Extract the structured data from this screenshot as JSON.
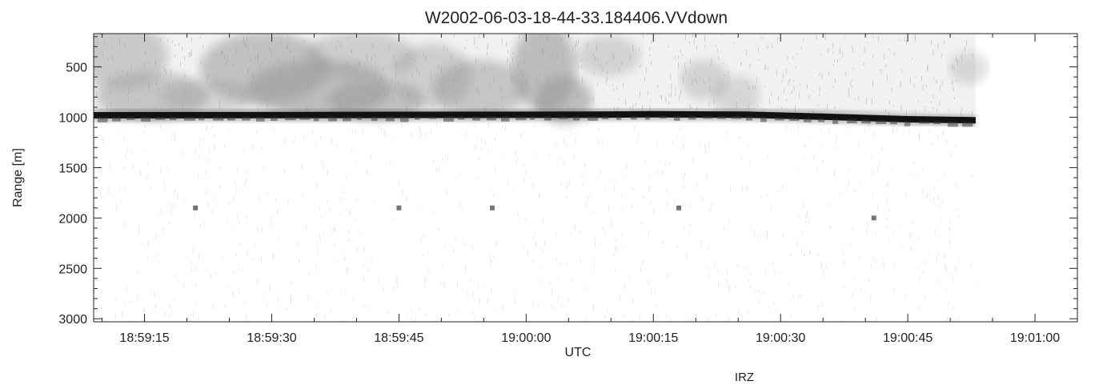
{
  "chart_data": {
    "type": "heatmap",
    "title": "W2002-06-03-18-44-33.184406.VVdown",
    "xlabel": "UTC",
    "ylabel": "Range [m]",
    "footer_text": "IRZ",
    "x_ticks": [
      "18:59:15",
      "18:59:30",
      "18:59:45",
      "19:00:00",
      "19:00:15",
      "19:00:30",
      "19:00:45",
      "19:01:00"
    ],
    "x_range_seconds": [
      "18:59:09",
      "19:01:05"
    ],
    "y_ticks": [
      500,
      1000,
      1500,
      2000,
      2500,
      3000
    ],
    "ylim": [
      170,
      3030
    ],
    "y_inverted": true,
    "colormap": "grayscale (darker = stronger return)",
    "data_end_time": "19:00:53",
    "features": {
      "strong_layer": {
        "description": "dark horizontal band",
        "time": [
          "18:59:09",
          "19:00:07",
          "19:00:15",
          "19:00:26",
          "19:00:35",
          "19:00:45",
          "19:00:53"
        ],
        "range_m": [
          980,
          975,
          970,
          975,
          995,
          1020,
          1030
        ]
      },
      "cloud_above_layer": {
        "description": "gray diffuse return",
        "range_m": [
          170,
          950
        ]
      },
      "isolated_points": [
        {
          "time": "18:59:21",
          "range_m": 1900
        },
        {
          "time": "18:59:45",
          "range_m": 1900
        },
        {
          "time": "18:59:56",
          "range_m": 1900
        },
        {
          "time": "19:00:18",
          "range_m": 1900
        },
        {
          "time": "19:00:41",
          "range_m": 2000
        }
      ]
    },
    "grid": false,
    "colors": {
      "axis": "#222222",
      "layer": "#111111",
      "cloud": "#9a9a9a",
      "speckle": "#bdbdbd"
    }
  }
}
